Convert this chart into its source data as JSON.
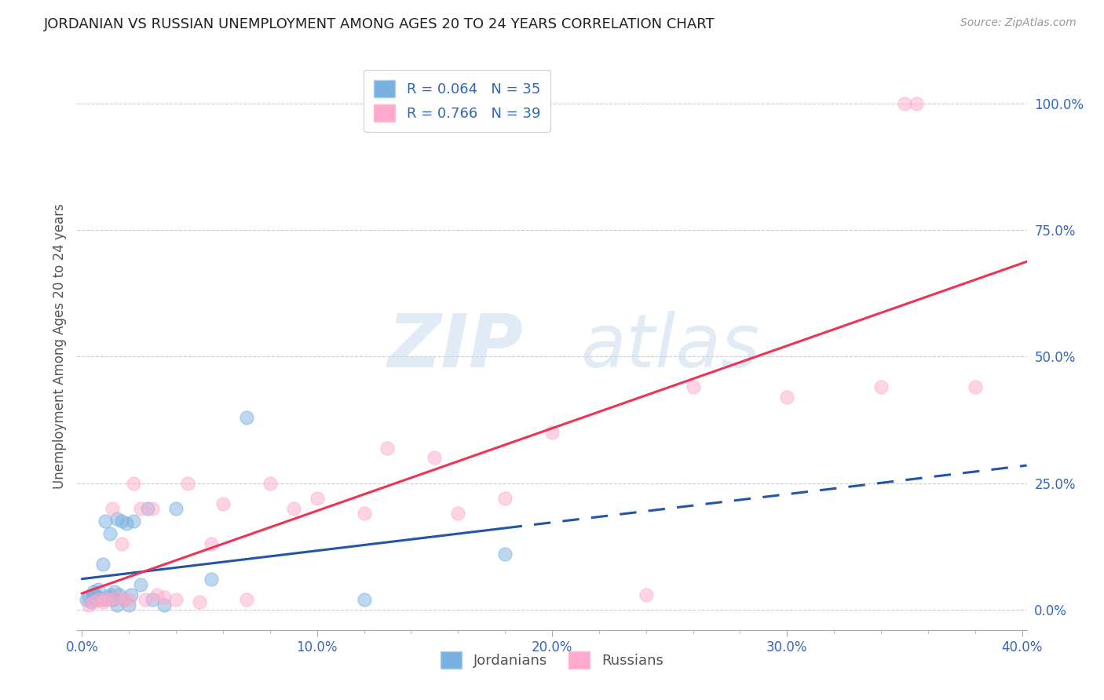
{
  "title": "JORDANIAN VS RUSSIAN UNEMPLOYMENT AMONG AGES 20 TO 24 YEARS CORRELATION CHART",
  "source": "Source: ZipAtlas.com",
  "xlabel_ticks": [
    "0.0%",
    "",
    "",
    "",
    "",
    "10.0%",
    "",
    "",
    "",
    "",
    "20.0%",
    "",
    "",
    "",
    "",
    "30.0%",
    "",
    "",
    "",
    "",
    "40.0%"
  ],
  "xlabel_tick_vals": [
    0.0,
    0.02,
    0.04,
    0.06,
    0.08,
    0.1,
    0.12,
    0.14,
    0.16,
    0.18,
    0.2,
    0.22,
    0.24,
    0.26,
    0.28,
    0.3,
    0.32,
    0.34,
    0.36,
    0.38,
    0.4
  ],
  "ylabel": "Unemployment Among Ages 20 to 24 years",
  "ylabel_ticks": [
    "100.0%",
    "75.0%",
    "50.0%",
    "25.0%",
    "0.0%"
  ],
  "ylabel_tick_vals": [
    1.0,
    0.75,
    0.5,
    0.25,
    0.0
  ],
  "xlim": [
    -0.002,
    0.402
  ],
  "ylim": [
    -0.04,
    1.08
  ],
  "jordanians_x": [
    0.002,
    0.003,
    0.004,
    0.005,
    0.005,
    0.006,
    0.007,
    0.007,
    0.008,
    0.009,
    0.01,
    0.01,
    0.011,
    0.012,
    0.012,
    0.013,
    0.014,
    0.015,
    0.015,
    0.016,
    0.017,
    0.018,
    0.019,
    0.02,
    0.021,
    0.022,
    0.025,
    0.028,
    0.03,
    0.035,
    0.04,
    0.055,
    0.07,
    0.12,
    0.18
  ],
  "jordanians_y": [
    0.02,
    0.025,
    0.015,
    0.03,
    0.035,
    0.02,
    0.025,
    0.04,
    0.02,
    0.09,
    0.02,
    0.175,
    0.025,
    0.03,
    0.15,
    0.02,
    0.035,
    0.01,
    0.18,
    0.03,
    0.175,
    0.02,
    0.17,
    0.01,
    0.03,
    0.175,
    0.05,
    0.2,
    0.02,
    0.01,
    0.2,
    0.06,
    0.38,
    0.02,
    0.11
  ],
  "russians_x": [
    0.003,
    0.005,
    0.007,
    0.009,
    0.01,
    0.012,
    0.013,
    0.015,
    0.017,
    0.018,
    0.02,
    0.022,
    0.025,
    0.027,
    0.03,
    0.032,
    0.035,
    0.04,
    0.045,
    0.05,
    0.055,
    0.06,
    0.07,
    0.08,
    0.09,
    0.1,
    0.12,
    0.13,
    0.15,
    0.16,
    0.18,
    0.2,
    0.24,
    0.26,
    0.3,
    0.34,
    0.35,
    0.355,
    0.38
  ],
  "russians_y": [
    0.01,
    0.015,
    0.02,
    0.015,
    0.02,
    0.02,
    0.2,
    0.025,
    0.13,
    0.02,
    0.02,
    0.25,
    0.2,
    0.02,
    0.2,
    0.03,
    0.025,
    0.02,
    0.25,
    0.015,
    0.13,
    0.21,
    0.02,
    0.25,
    0.2,
    0.22,
    0.19,
    0.32,
    0.3,
    0.19,
    0.22,
    0.35,
    0.03,
    0.44,
    0.42,
    0.44,
    1.0,
    1.0,
    0.44
  ],
  "jordan_R": "0.064",
  "jordan_N": "35",
  "russia_R": "0.766",
  "russia_N": "39",
  "jordan_color": "#7ab0e0",
  "russia_color": "#ffaacc",
  "jordan_line_color": "#2255aa",
  "russia_line_color": "#ee3355",
  "watermark_zip": "ZIP",
  "watermark_atlas": "atlas",
  "background_color": "#ffffff",
  "grid_color": "#cccccc",
  "legend_box_color": "#ccddee"
}
